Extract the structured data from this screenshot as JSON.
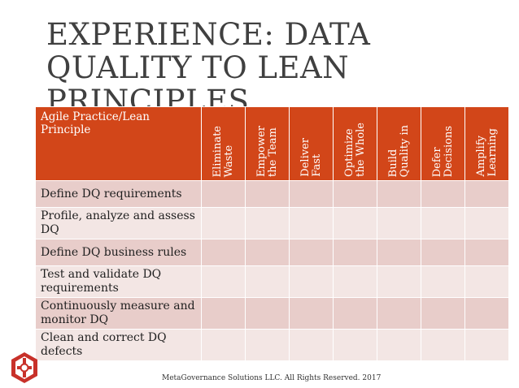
{
  "slide": {
    "title": "EXPERIENCE: DATA QUALITY TO LEAN PRINCIPLES",
    "footer": "MetaGovernance Solutions LLC. All Rights Reserved. 2017"
  },
  "table": {
    "corner_header": "Agile Practice/Lean Principle",
    "columns": [
      "Eliminate\nWaste",
      "Empower\nthe Team",
      "Deliver\nFast",
      "Optimize\nthe Whole",
      "Build\nQuality in",
      "Defer\nDecisions",
      "Amplify\nLearning"
    ],
    "rows": [
      "Define DQ requirements",
      "Profile, analyze and assess DQ",
      "Define DQ business rules",
      "Test and validate DQ requirements",
      "Continuously measure and monitor DQ",
      "Clean and correct DQ defects"
    ]
  },
  "colors": {
    "header_bg": "#d24619",
    "row_odd": "#e8cdca",
    "row_even": "#f3e6e4",
    "title": "#404040",
    "logo_red": "#c8312a"
  },
  "icons": {
    "logo": "metagovernance-logo-icon"
  }
}
